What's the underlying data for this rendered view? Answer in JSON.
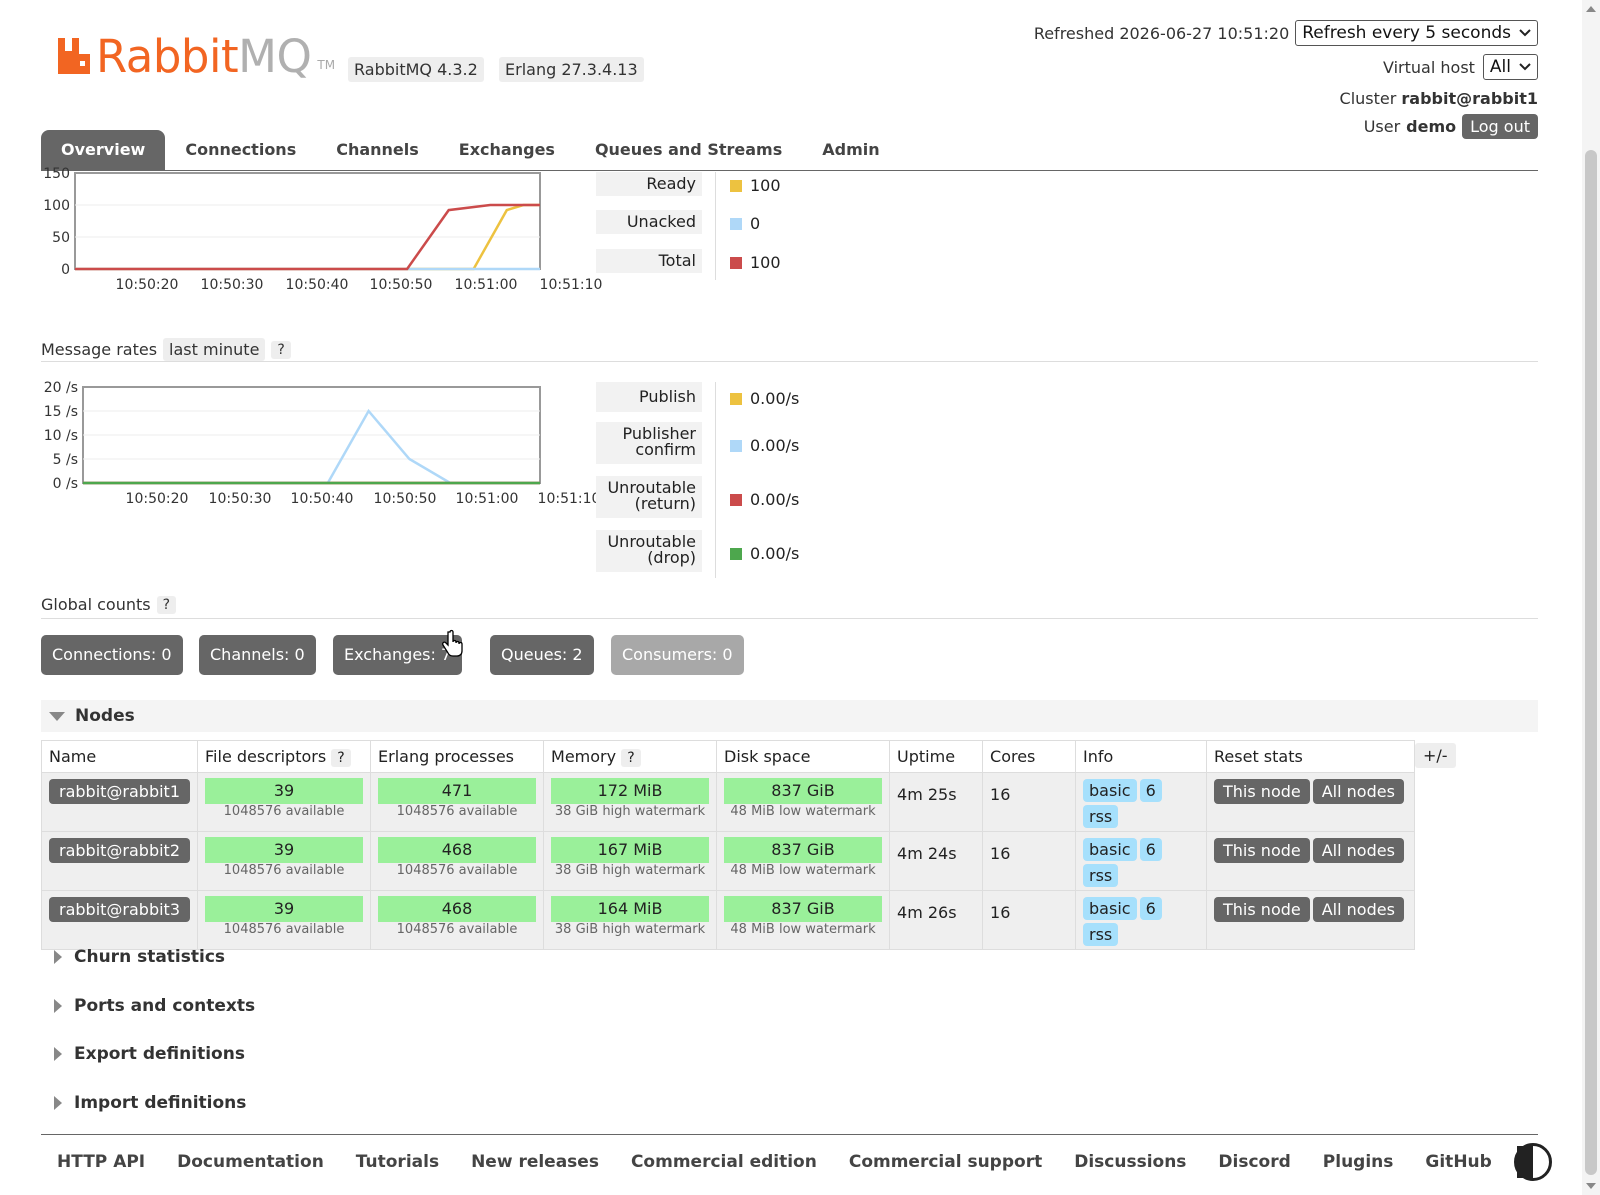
{
  "header": {
    "logo_main": "Rabbit",
    "logo_mq": "MQ",
    "logo_tm": "TM",
    "rabbitmq_version": "RabbitMQ 4.3.2",
    "erlang_version": "Erlang 27.3.4.13",
    "refreshed": "Refreshed 2026-06-27 10:51:20",
    "refresh_select": "Refresh every 5 seconds",
    "vhost_label": "Virtual host",
    "vhost_select": "All",
    "cluster_label": "Cluster",
    "cluster_name": "rabbit@rabbit1",
    "user_label": "User",
    "user_name": "demo",
    "logout": "Log out"
  },
  "tabs": [
    "Overview",
    "Connections",
    "Channels",
    "Exchanges",
    "Queues and Streams",
    "Admin"
  ],
  "queued_messages": {
    "chart_data": {
      "type": "line",
      "x": [
        "10:50:20",
        "10:50:30",
        "10:50:40",
        "10:50:50",
        "10:51:00",
        "10:51:10"
      ],
      "y_ticks": [
        "150",
        "100",
        "50",
        "0"
      ],
      "ylim": [
        0,
        150
      ],
      "series": [
        {
          "name": "Ready",
          "color": "#edc240",
          "points": [
            [
              0,
              0
            ],
            [
              48,
              0
            ],
            [
              52,
              92
            ],
            [
              54,
              100
            ],
            [
              56,
              100
            ]
          ]
        },
        {
          "name": "Unacked",
          "color": "#afd8f8",
          "points": [
            [
              0,
              0
            ],
            [
              56,
              0
            ]
          ]
        },
        {
          "name": "Total",
          "color": "#cb4b4b",
          "points": [
            [
              0,
              0
            ],
            [
              40,
              0
            ],
            [
              45,
              92
            ],
            [
              50,
              100
            ],
            [
              56,
              100
            ]
          ]
        }
      ]
    },
    "legend": [
      {
        "label": "Ready",
        "value": "100",
        "color": "#edc240"
      },
      {
        "label": "Unacked",
        "value": "0",
        "color": "#afd8f8"
      },
      {
        "label": "Total",
        "value": "100",
        "color": "#cb4b4b"
      }
    ]
  },
  "message_rates": {
    "title": "Message rates",
    "period": "last minute",
    "help": "?",
    "chart_data": {
      "type": "line",
      "x": [
        "10:50:20",
        "10:50:30",
        "10:50:40",
        "10:50:50",
        "10:51:00",
        "10:51:10"
      ],
      "y_ticks": [
        "20 /s",
        "15 /s",
        "10 /s",
        "5 /s",
        "0 /s"
      ],
      "ylim": [
        0,
        20
      ],
      "series": [
        {
          "name": "Publish",
          "color": "#edc240",
          "points": [
            [
              0,
              0
            ],
            [
              56,
              0
            ]
          ]
        },
        {
          "name": "Publisher confirm",
          "color": "#afd8f8",
          "points": [
            [
              0,
              0
            ],
            [
              30,
              0
            ],
            [
              35,
              15
            ],
            [
              40,
              5
            ],
            [
              45,
              0
            ],
            [
              56,
              0
            ]
          ]
        },
        {
          "name": "Unroutable (return)",
          "color": "#cb4b4b",
          "points": [
            [
              0,
              0
            ],
            [
              56,
              0
            ]
          ]
        },
        {
          "name": "Unroutable (drop)",
          "color": "#4da74d",
          "points": [
            [
              0,
              0
            ],
            [
              56,
              0
            ]
          ]
        }
      ]
    },
    "legend": [
      {
        "label": "Publish",
        "value": "0.00/s",
        "color": "#edc240"
      },
      {
        "label": "Publisher confirm",
        "value": "0.00/s",
        "color": "#afd8f8"
      },
      {
        "label": "Unroutable (return)",
        "value": "0.00/s",
        "color": "#cb4b4b"
      },
      {
        "label": "Unroutable (drop)",
        "value": "0.00/s",
        "color": "#4da74d"
      }
    ]
  },
  "global_counts": {
    "title": "Global counts",
    "help": "?",
    "connections": "Connections: 0",
    "channels": "Channels: 0",
    "exchanges": "Exchanges: 7",
    "queues": "Queues: 2",
    "consumers": "Consumers: 0"
  },
  "nodes": {
    "title": "Nodes",
    "columns": [
      "Name",
      "File descriptors",
      "Erlang processes",
      "Memory",
      "Disk space",
      "Uptime",
      "Cores",
      "Info",
      "Reset stats"
    ],
    "help": "?",
    "plus_minus": "+/-",
    "rows": [
      {
        "name": "rabbit@rabbit1",
        "fd": "39",
        "fd_sub": "1048576 available",
        "proc": "471",
        "proc_sub": "1048576 available",
        "mem": "172 MiB",
        "mem_sub": "38 GiB high watermark",
        "disk": "837 GiB",
        "disk_sub": "48 MiB low watermark",
        "uptime": "4m 25s",
        "cores": "16",
        "info": [
          "basic",
          "6",
          "rss"
        ],
        "reset": [
          "This node",
          "All nodes"
        ]
      },
      {
        "name": "rabbit@rabbit2",
        "fd": "39",
        "fd_sub": "1048576 available",
        "proc": "468",
        "proc_sub": "1048576 available",
        "mem": "167 MiB",
        "mem_sub": "38 GiB high watermark",
        "disk": "837 GiB",
        "disk_sub": "48 MiB low watermark",
        "uptime": "4m 24s",
        "cores": "16",
        "info": [
          "basic",
          "6",
          "rss"
        ],
        "reset": [
          "This node",
          "All nodes"
        ]
      },
      {
        "name": "rabbit@rabbit3",
        "fd": "39",
        "fd_sub": "1048576 available",
        "proc": "468",
        "proc_sub": "1048576 available",
        "mem": "164 MiB",
        "mem_sub": "38 GiB high watermark",
        "disk": "837 GiB",
        "disk_sub": "48 MiB low watermark",
        "uptime": "4m 26s",
        "cores": "16",
        "info": [
          "basic",
          "6",
          "rss"
        ],
        "reset": [
          "This node",
          "All nodes"
        ]
      }
    ]
  },
  "sections": [
    "Churn statistics",
    "Ports and contexts",
    "Export definitions",
    "Import definitions"
  ],
  "footer": [
    "HTTP API",
    "Documentation",
    "Tutorials",
    "New releases",
    "Commercial edition",
    "Commercial support",
    "Discussions",
    "Discord",
    "Plugins",
    "GitHub"
  ],
  "icons": {
    "dropdown": "chevron-down-icon",
    "theme": "contrast-icon",
    "cursor": "hand-pointer-icon"
  }
}
